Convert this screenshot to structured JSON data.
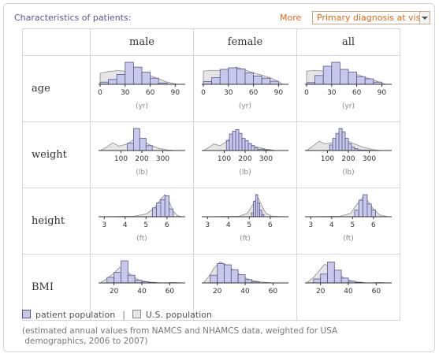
{
  "header": {
    "title": "Characteristics of patients:",
    "more_label": "More",
    "dropdown_value": "Primary diagnosis at visit"
  },
  "columns": [
    "male",
    "female",
    "all"
  ],
  "rows": [
    "age",
    "weight",
    "height",
    "BMI"
  ],
  "legend": {
    "patient": "patient population",
    "us": "U.S. population",
    "separator": "|"
  },
  "note": {
    "line1": "(estimated annual values from NAMCS and NHAMCS data, weighted for USA",
    "line2": " demographics, 2006 to 2007)"
  },
  "colors": {
    "bar_fill": "#c8c8ec",
    "bar_stroke": "#55558a",
    "us_fill": "#e4e4e4",
    "us_stroke": "#888888"
  },
  "chart_data": [
    {
      "type": "bar",
      "variable": "age",
      "group": "male",
      "unit": "(yr)",
      "xlim": [
        0,
        100
      ],
      "ticks": [
        0,
        30,
        60,
        90
      ],
      "bin_edges": [
        0,
        10,
        20,
        30,
        40,
        50,
        60,
        70,
        80,
        90
      ],
      "patient": [
        0.1,
        0.22,
        0.45,
        1.0,
        0.78,
        0.55,
        0.28,
        0.06,
        0.0
      ],
      "us": [
        [
          0,
          0.5
        ],
        [
          10,
          0.58
        ],
        [
          20,
          0.62
        ],
        [
          30,
          0.6
        ],
        [
          40,
          0.62
        ],
        [
          50,
          0.52
        ],
        [
          60,
          0.4
        ],
        [
          70,
          0.25
        ],
        [
          80,
          0.1
        ],
        [
          90,
          0.02
        ],
        [
          95,
          0
        ]
      ]
    },
    {
      "type": "bar",
      "variable": "age",
      "group": "female",
      "unit": "(yr)",
      "xlim": [
        0,
        100
      ],
      "ticks": [
        0,
        30,
        60,
        90
      ],
      "bin_edges": [
        0,
        10,
        20,
        30,
        40,
        50,
        60,
        70,
        80,
        90
      ],
      "patient": [
        0.12,
        0.3,
        0.68,
        0.75,
        0.7,
        0.52,
        0.38,
        0.28,
        0.14
      ],
      "us": [
        [
          0,
          0.6
        ],
        [
          10,
          0.64
        ],
        [
          20,
          0.62
        ],
        [
          30,
          0.66
        ],
        [
          40,
          0.78
        ],
        [
          50,
          0.65
        ],
        [
          60,
          0.52
        ],
        [
          70,
          0.42
        ],
        [
          80,
          0.3
        ],
        [
          90,
          0.12
        ],
        [
          95,
          0
        ]
      ]
    },
    {
      "type": "bar",
      "variable": "age",
      "group": "all",
      "unit": "(yr)",
      "xlim": [
        0,
        100
      ],
      "ticks": [
        0,
        30,
        60,
        90
      ],
      "bin_edges": [
        0,
        10,
        20,
        30,
        40,
        50,
        60,
        70,
        80,
        90
      ],
      "patient": [
        0.08,
        0.4,
        0.82,
        1.0,
        0.68,
        0.55,
        0.35,
        0.25,
        0.1
      ],
      "us": [
        [
          0,
          0.6
        ],
        [
          10,
          0.63
        ],
        [
          20,
          0.6
        ],
        [
          30,
          0.62
        ],
        [
          40,
          0.68
        ],
        [
          50,
          0.56
        ],
        [
          60,
          0.45
        ],
        [
          70,
          0.32
        ],
        [
          80,
          0.2
        ],
        [
          90,
          0.06
        ],
        [
          95,
          0
        ]
      ]
    },
    {
      "type": "bar",
      "variable": "weight",
      "group": "male",
      "unit": "(lb)",
      "xlim": [
        0,
        400
      ],
      "ticks": [
        100,
        200,
        300
      ],
      "bin_edges": [
        130,
        160,
        190,
        220,
        250
      ],
      "patient": [
        0.33,
        1.0,
        0.55,
        0.22
      ],
      "us": [
        [
          0,
          0
        ],
        [
          30,
          0.15
        ],
        [
          60,
          0.35
        ],
        [
          90,
          0.2
        ],
        [
          130,
          0.3
        ],
        [
          170,
          0.55
        ],
        [
          200,
          0.45
        ],
        [
          240,
          0.25
        ],
        [
          280,
          0.1
        ],
        [
          320,
          0.03
        ],
        [
          360,
          0
        ]
      ]
    },
    {
      "type": "bar",
      "variable": "weight",
      "group": "female",
      "unit": "(lb)",
      "xlim": [
        0,
        400
      ],
      "ticks": [
        100,
        200,
        300
      ],
      "bin_edges": [
        110,
        125,
        140,
        155,
        170,
        185,
        200,
        215,
        230,
        245,
        260,
        290,
        320
      ],
      "patient": [
        0.45,
        0.75,
        0.88,
        0.95,
        0.78,
        0.55,
        0.45,
        0.32,
        0.22,
        0.12,
        0.06,
        0.03
      ],
      "us": [
        [
          0,
          0
        ],
        [
          20,
          0.1
        ],
        [
          50,
          0.3
        ],
        [
          80,
          0.22
        ],
        [
          110,
          0.4
        ],
        [
          140,
          0.65
        ],
        [
          170,
          0.52
        ],
        [
          210,
          0.35
        ],
        [
          250,
          0.18
        ],
        [
          300,
          0.06
        ],
        [
          350,
          0
        ]
      ]
    },
    {
      "type": "bar",
      "variable": "weight",
      "group": "all",
      "unit": "(lb)",
      "xlim": [
        0,
        400
      ],
      "ticks": [
        100,
        200,
        300
      ],
      "bin_edges": [
        110,
        125,
        140,
        155,
        170,
        185,
        200,
        215,
        230,
        245,
        260,
        290,
        320
      ],
      "patient": [
        0.25,
        0.55,
        0.78,
        1.0,
        0.85,
        0.55,
        0.3,
        0.15,
        0.08,
        0.03,
        0.02,
        0.01
      ],
      "us": [
        [
          0,
          0
        ],
        [
          30,
          0.2
        ],
        [
          60,
          0.42
        ],
        [
          90,
          0.3
        ],
        [
          120,
          0.35
        ],
        [
          160,
          0.5
        ],
        [
          190,
          0.45
        ],
        [
          230,
          0.3
        ],
        [
          270,
          0.15
        ],
        [
          320,
          0.04
        ],
        [
          360,
          0
        ]
      ]
    },
    {
      "type": "bar",
      "variable": "height",
      "group": "male",
      "unit": "(ft)",
      "xlim": [
        2.8,
        6.8
      ],
      "ticks": [
        3,
        4,
        5,
        6
      ],
      "bin_edges": [
        5.3,
        5.5,
        5.7,
        5.9,
        6.1,
        6.3
      ],
      "patient": [
        0.4,
        0.62,
        0.78,
        0.95,
        0.35
      ],
      "us": [
        [
          2.8,
          0
        ],
        [
          4.4,
          0.02
        ],
        [
          5.0,
          0.12
        ],
        [
          5.4,
          0.4
        ],
        [
          5.7,
          0.8
        ],
        [
          5.9,
          1.0
        ],
        [
          6.1,
          0.7
        ],
        [
          6.3,
          0.25
        ],
        [
          6.5,
          0.05
        ],
        [
          6.7,
          0
        ]
      ]
    },
    {
      "type": "bar",
      "variable": "height",
      "group": "female",
      "unit": "(ft)",
      "xlim": [
        2.8,
        6.8
      ],
      "ticks": [
        3,
        4,
        5,
        6
      ],
      "bin_edges": [
        5.1,
        5.2,
        5.3,
        5.4,
        5.5,
        5.6,
        5.7
      ],
      "patient": [
        0.18,
        0.7,
        1.0,
        0.62,
        0.3,
        0.1
      ],
      "us": [
        [
          2.8,
          0
        ],
        [
          4.5,
          0.02
        ],
        [
          4.9,
          0.15
        ],
        [
          5.2,
          0.6
        ],
        [
          5.4,
          0.9
        ],
        [
          5.55,
          0.6
        ],
        [
          5.8,
          0.15
        ],
        [
          6.1,
          0.02
        ],
        [
          6.7,
          0
        ]
      ]
    },
    {
      "type": "bar",
      "variable": "height",
      "group": "all",
      "unit": "(ft)",
      "xlim": [
        2.8,
        6.8
      ],
      "ticks": [
        3,
        4,
        5,
        6
      ],
      "bin_edges": [
        5.1,
        5.3,
        5.5,
        5.7,
        5.9,
        6.1
      ],
      "patient": [
        0.3,
        0.75,
        1.0,
        0.58,
        0.3
      ],
      "us": [
        [
          2.8,
          0
        ],
        [
          4.4,
          0.02
        ],
        [
          4.9,
          0.15
        ],
        [
          5.2,
          0.55
        ],
        [
          5.5,
          0.9
        ],
        [
          5.7,
          0.75
        ],
        [
          6.0,
          0.35
        ],
        [
          6.3,
          0.08
        ],
        [
          6.7,
          0
        ]
      ]
    },
    {
      "type": "bar",
      "variable": "BMI",
      "group": "male",
      "unit": "",
      "xlim": [
        10,
        70
      ],
      "ticks": [
        20,
        40,
        60
      ],
      "bin_edges": [
        15,
        20,
        25,
        30,
        35,
        40,
        45,
        50
      ],
      "patient": [
        0.25,
        0.48,
        1.0,
        0.35,
        0.12,
        0.05,
        0.02
      ],
      "us": [
        [
          10,
          0
        ],
        [
          15,
          0.2
        ],
        [
          20,
          0.45
        ],
        [
          24,
          0.7
        ],
        [
          28,
          0.6
        ],
        [
          33,
          0.32
        ],
        [
          38,
          0.12
        ],
        [
          45,
          0.04
        ],
        [
          55,
          0
        ],
        [
          62,
          0.02
        ],
        [
          70,
          0
        ]
      ]
    },
    {
      "type": "bar",
      "variable": "BMI",
      "group": "female",
      "unit": "",
      "xlim": [
        10,
        70
      ],
      "ticks": [
        20,
        40,
        60
      ],
      "bin_edges": [
        15,
        20,
        25,
        30,
        35,
        40,
        45,
        50
      ],
      "patient": [
        0.35,
        0.88,
        0.82,
        0.6,
        0.38,
        0.15,
        0.05
      ],
      "us": [
        [
          10,
          0
        ],
        [
          14,
          0.3
        ],
        [
          18,
          0.7
        ],
        [
          22,
          0.95
        ],
        [
          27,
          0.8
        ],
        [
          32,
          0.55
        ],
        [
          38,
          0.3
        ],
        [
          44,
          0.12
        ],
        [
          52,
          0.04
        ],
        [
          60,
          0
        ]
      ]
    },
    {
      "type": "bar",
      "variable": "BMI",
      "group": "all",
      "unit": "",
      "xlim": [
        10,
        70
      ],
      "ticks": [
        20,
        40,
        60
      ],
      "bin_edges": [
        15,
        20,
        25,
        30,
        35,
        40,
        45,
        50
      ],
      "patient": [
        0.18,
        0.4,
        0.95,
        0.58,
        0.22,
        0.08,
        0.03
      ],
      "us": [
        [
          10,
          0
        ],
        [
          15,
          0.25
        ],
        [
          19,
          0.55
        ],
        [
          23,
          0.85
        ],
        [
          27,
          0.72
        ],
        [
          32,
          0.42
        ],
        [
          38,
          0.18
        ],
        [
          45,
          0.05
        ],
        [
          55,
          0
        ],
        [
          62,
          0.02
        ],
        [
          70,
          0
        ]
      ]
    }
  ]
}
